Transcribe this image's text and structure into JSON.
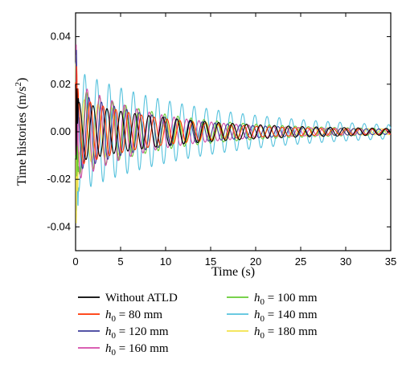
{
  "chart_data": {
    "type": "line",
    "title": "",
    "xlabel": "Time (s)",
    "ylabel": "Time histories (m/s²)",
    "ylabel_main": "Time histories (m/s",
    "ylabel_sup": "2",
    "ylabel_tail": ")",
    "xlim": [
      0,
      35
    ],
    "ylim": [
      -0.05,
      0.05
    ],
    "xticks": [
      0,
      5,
      10,
      15,
      20,
      25,
      30,
      35
    ],
    "xtick_labels": [
      "0",
      "5",
      "10",
      "15",
      "20",
      "25",
      "30",
      "35"
    ],
    "yticks": [
      -0.04,
      -0.02,
      0.0,
      0.02,
      0.04
    ],
    "ytick_labels": [
      "-0.04",
      "-0.02",
      "0.00",
      "0.02",
      "0.04"
    ],
    "grid": false,
    "legend_position": "bottom",
    "series": [
      {
        "name": "Without ATLD",
        "h_label": "",
        "value_label": "Without ATLD",
        "color": "#000000",
        "amp0": 0.012,
        "decay": 0.085,
        "period": 1.55,
        "phase": 0.0
      },
      {
        "name": "h0 = 80 mm",
        "h_label": "h",
        "sub": "0",
        "value_label": " = 80 mm",
        "color": "#ff3300",
        "amp0": 0.014,
        "decay": 0.11,
        "period": 1.42,
        "phase": 0.6
      },
      {
        "name": "h0 = 120 mm",
        "h_label": "h",
        "sub": "0",
        "value_label": " = 120 mm",
        "color": "#3b3b9a",
        "amp0": 0.016,
        "decay": 0.11,
        "period": 1.4,
        "phase": 1.2
      },
      {
        "name": "h0 = 160 mm",
        "h_label": "h",
        "sub": "0",
        "value_label": " = 160 mm",
        "color": "#d44aa8",
        "amp0": 0.02,
        "decay": 0.12,
        "period": 1.38,
        "phase": 2.0
      },
      {
        "name": "h0 = 100 mm",
        "h_label": "h",
        "sub": "0",
        "value_label": " = 100 mm",
        "color": "#66cc33",
        "amp0": 0.018,
        "decay": 0.1,
        "period": 1.45,
        "phase": 2.6
      },
      {
        "name": "h0 = 140 mm",
        "h_label": "h",
        "sub": "0",
        "value_label": " = 140 mm",
        "color": "#55c2dd",
        "amp0": 0.025,
        "decay": 0.07,
        "period": 1.35,
        "phase": 3.1
      },
      {
        "name": "h0 = 180 mm",
        "h_label": "h",
        "sub": "0",
        "value_label": " = 180 mm",
        "color": "#f2e24a",
        "amp0": 0.014,
        "decay": 0.1,
        "period": 1.5,
        "phase": 3.7
      }
    ]
  }
}
